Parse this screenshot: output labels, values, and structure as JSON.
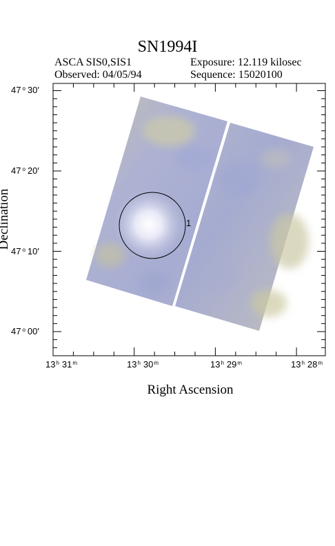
{
  "title": "SN1994I",
  "instrument": "ASCA SIS0,SIS1",
  "exposure": "Exposure: 12.119 kilosec",
  "observed": "Observed: 04/05/94",
  "sequence": "Sequence: 15020100",
  "xlabel": "Right Ascension",
  "ylabel": "Declination",
  "source_label": "1",
  "dec_ticks": [
    {
      "deg": "47",
      "min": "30",
      "value": 30
    },
    {
      "deg": "47",
      "min": "20",
      "value": 20
    },
    {
      "deg": "47",
      "min": "10",
      "value": 10
    },
    {
      "deg": "47",
      "min": "00",
      "value": 0
    }
  ],
  "ra_ticks": [
    {
      "h": "13",
      "m": "31",
      "value": 31
    },
    {
      "h": "13",
      "m": "30",
      "value": 30
    },
    {
      "h": "13",
      "m": "29",
      "value": 29
    },
    {
      "h": "13",
      "m": "28",
      "value": 28
    }
  ],
  "colors": {
    "image_blue": "#a9afd4",
    "image_yellow": "#c9c8a4",
    "image_bright": "#f2f3fb"
  }
}
